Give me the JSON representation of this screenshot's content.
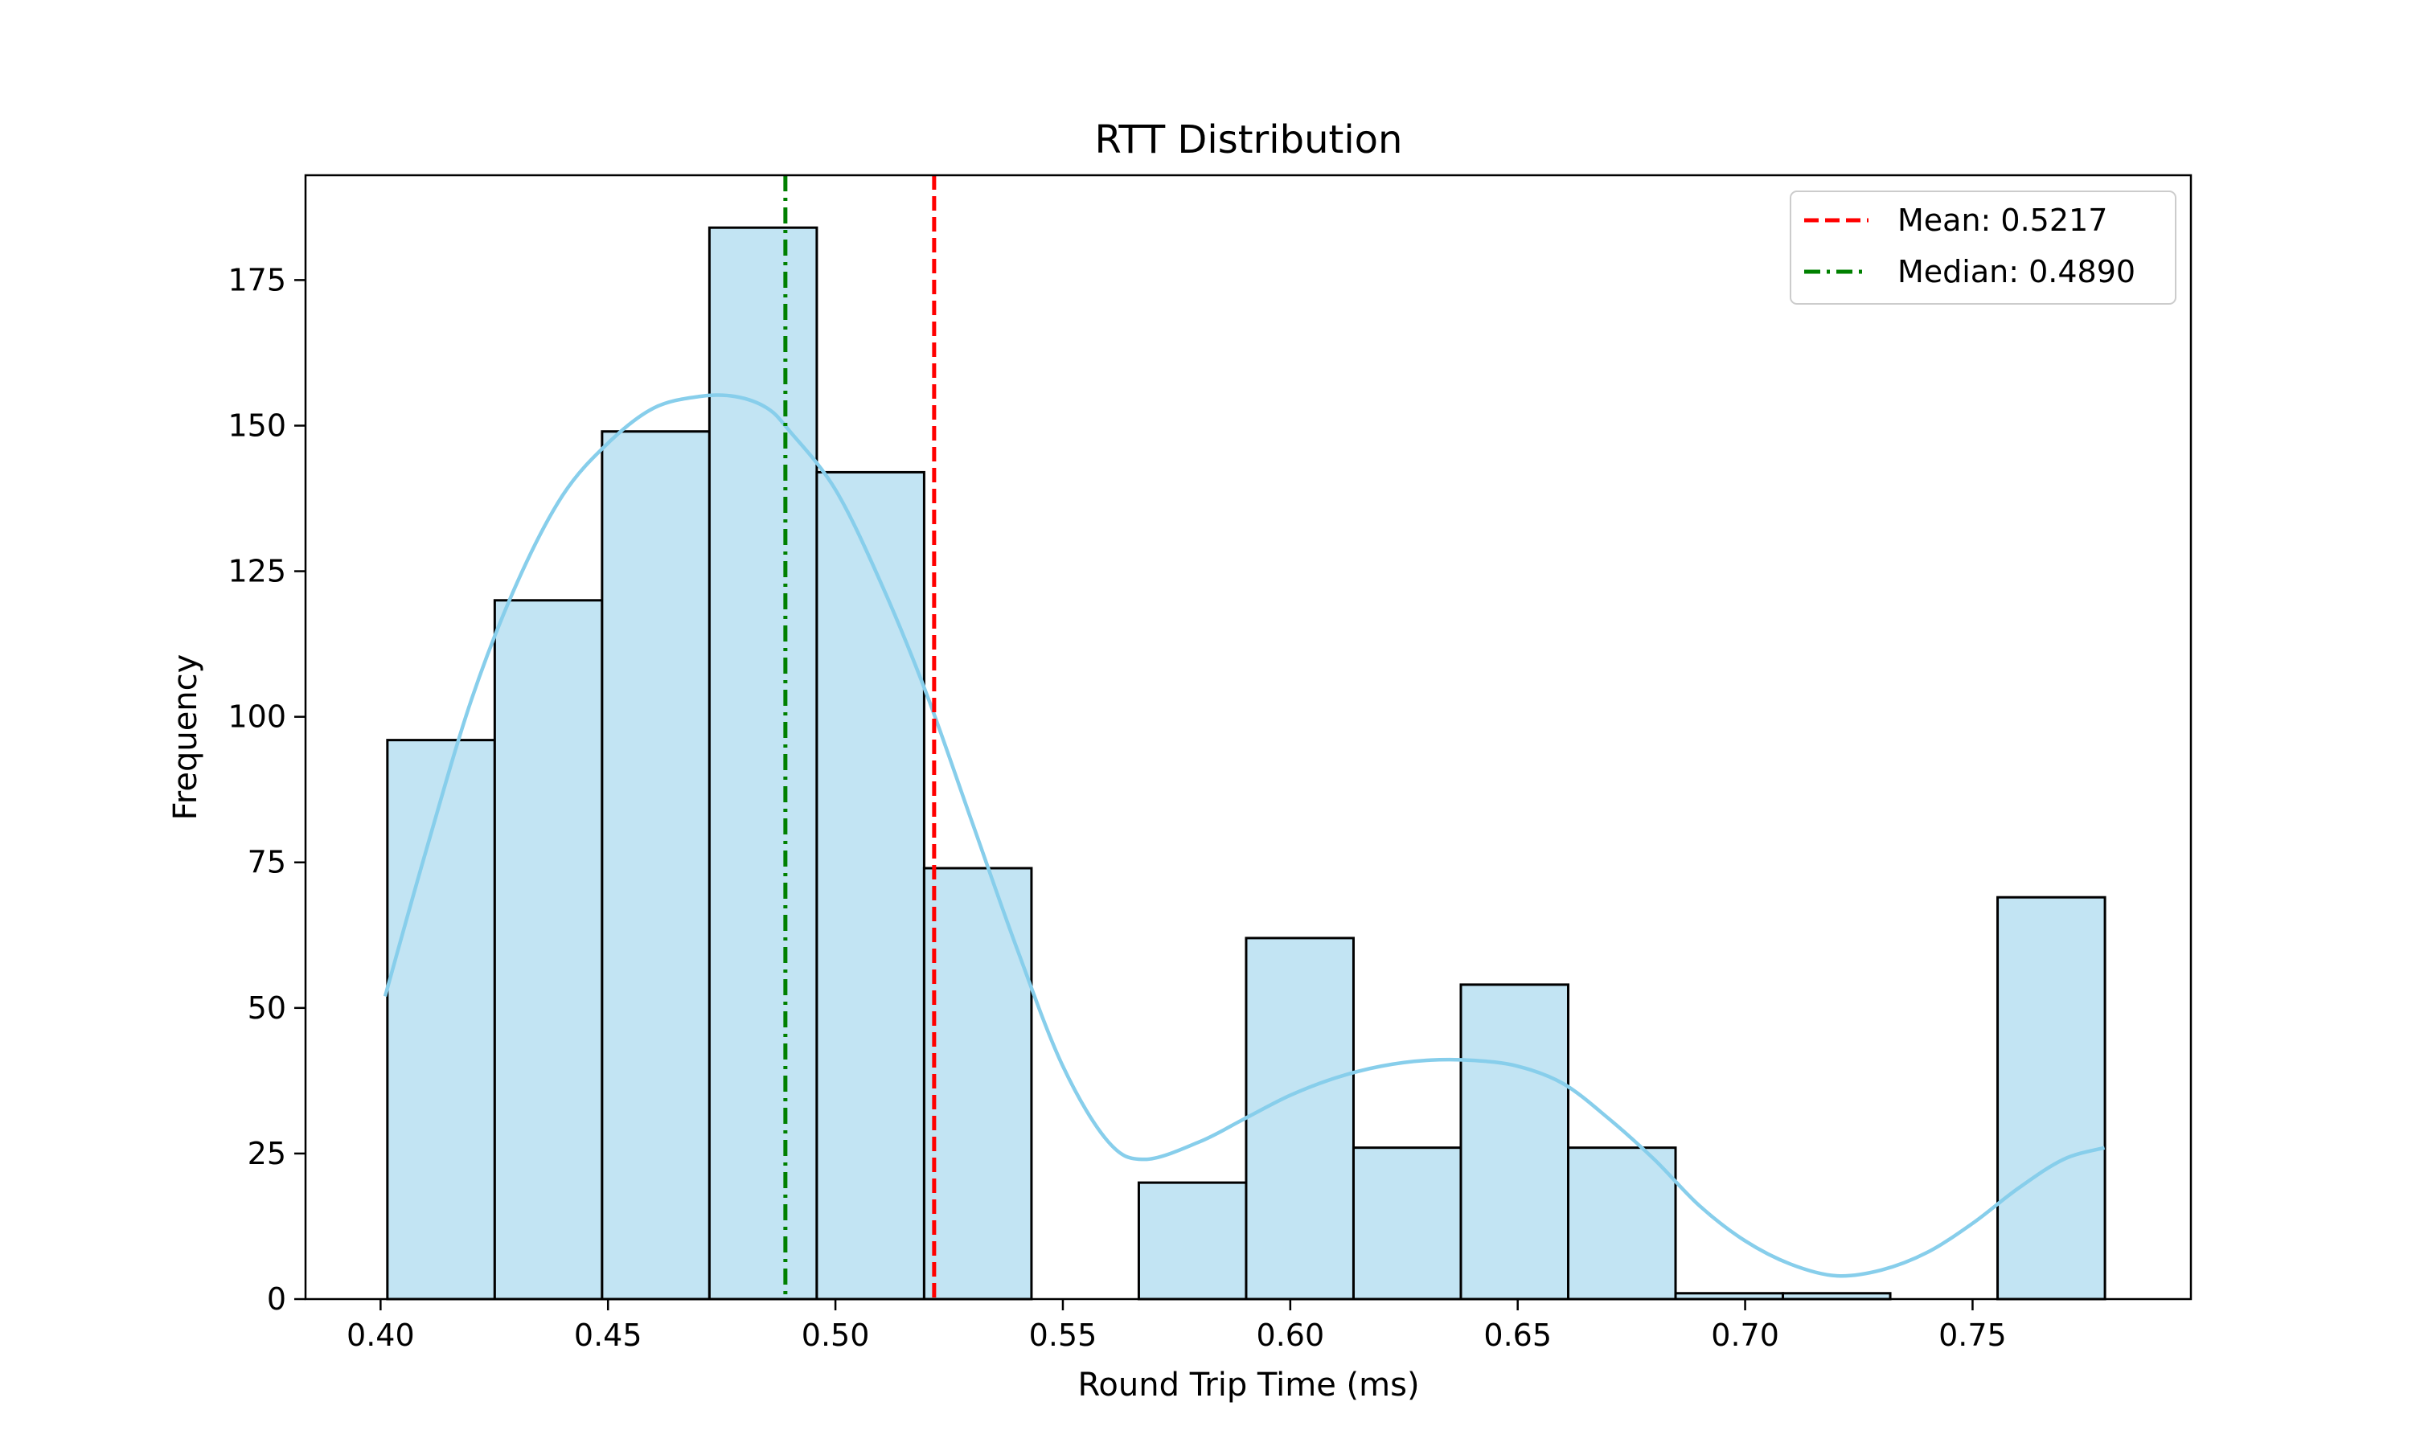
{
  "chart_data": {
    "type": "bar",
    "subtype": "histogram-with-kde",
    "title": "RTT Distribution",
    "xlabel": "Round Trip Time (ms)",
    "ylabel": "Frequency",
    "xlim": [
      0.3835,
      0.798
    ],
    "ylim": [
      0,
      193
    ],
    "x_ticks": [
      0.4,
      0.45,
      0.5,
      0.55,
      0.6,
      0.65,
      0.7,
      0.75
    ],
    "x_tick_labels": [
      "0.40",
      "0.45",
      "0.50",
      "0.55",
      "0.60",
      "0.65",
      "0.70",
      "0.75"
    ],
    "y_ticks": [
      0,
      25,
      50,
      75,
      100,
      125,
      150,
      175
    ],
    "y_tick_labels": [
      "0",
      "25",
      "50",
      "75",
      "100",
      "125",
      "150",
      "175"
    ],
    "grid": false,
    "bins": {
      "edges": [
        0.4015,
        0.4251,
        0.4487,
        0.4723,
        0.4959,
        0.5195,
        0.5431,
        0.5667,
        0.5903,
        0.6139,
        0.6375,
        0.6611,
        0.6847,
        0.7083,
        0.7319,
        0.7555,
        0.7791
      ],
      "counts": [
        96,
        120,
        149,
        184,
        142,
        74,
        0,
        20,
        62,
        26,
        54,
        26,
        1,
        1,
        0,
        69
      ]
    },
    "kde": {
      "x": [
        0.401,
        0.41,
        0.42,
        0.43,
        0.44,
        0.45,
        0.46,
        0.47,
        0.478,
        0.485,
        0.49,
        0.5,
        0.51,
        0.52,
        0.53,
        0.54,
        0.55,
        0.56,
        0.568,
        0.58,
        0.59,
        0.6,
        0.61,
        0.62,
        0.63,
        0.64,
        0.65,
        0.66,
        0.67,
        0.68,
        0.69,
        0.7,
        0.71,
        0.72,
        0.73,
        0.74,
        0.75,
        0.76,
        0.77,
        0.779
      ],
      "y": [
        52,
        77,
        103,
        123,
        138,
        147,
        153,
        155,
        155,
        153,
        149,
        139,
        123,
        104,
        82,
        60,
        40,
        27,
        24,
        27,
        31,
        35,
        38,
        40,
        41,
        41,
        40,
        37,
        31,
        24,
        16,
        10,
        6,
        4,
        5,
        8,
        13,
        19,
        24,
        26
      ]
    },
    "reference_lines": [
      {
        "name": "Mean: 0.5217",
        "x": 0.5217,
        "color": "#ff0000",
        "style": "dashed"
      },
      {
        "name": "Median: 0.4890",
        "x": 0.489,
        "color": "#008000",
        "style": "dashdot"
      }
    ],
    "colors": {
      "bar_fill": "#c2e4f3",
      "bar_edge": "#000000",
      "kde_line": "#87ceeb"
    },
    "legend": {
      "placement": "top-right",
      "entries": [
        "Mean: 0.5217",
        "Median: 0.4890"
      ]
    }
  }
}
